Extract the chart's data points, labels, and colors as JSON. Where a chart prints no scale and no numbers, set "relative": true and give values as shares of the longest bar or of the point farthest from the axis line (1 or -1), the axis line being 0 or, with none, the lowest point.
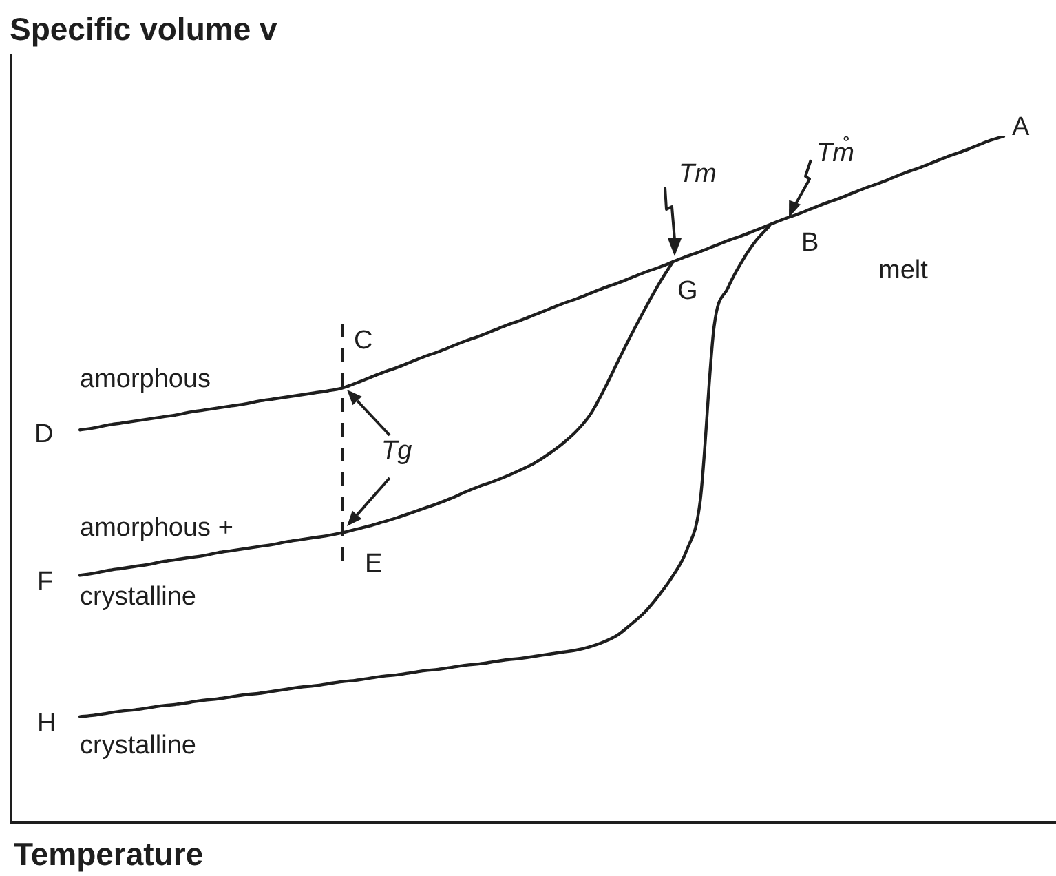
{
  "chart_data": {
    "type": "line",
    "relative": true,
    "xlabel": "Temperature",
    "ylabel": "Specific volume v",
    "categories": [
      null,
      null,
      null,
      null,
      null,
      null,
      null,
      null,
      null,
      null,
      null,
      null,
      null,
      null,
      null,
      null,
      null,
      null,
      null,
      null,
      null,
      null,
      null,
      null,
      null,
      null,
      null,
      null,
      null,
      null,
      null,
      null,
      null,
      null,
      null,
      null,
      null,
      null,
      null,
      null,
      null,
      null,
      null,
      null,
      null,
      null,
      null,
      null,
      null,
      null,
      null,
      null,
      null,
      null,
      null,
      null,
      null,
      null,
      null,
      null,
      null,
      null,
      null,
      null,
      null,
      null,
      null,
      null,
      null,
      null,
      null,
      null,
      null,
      null,
      null,
      null
    ],
    "series": [
      {
        "color": "#1e1e1e",
        "values": [
          null,
          null,
          null,
          null,
          null,
          0.572,
          0.575,
          0.579,
          0.582,
          0.585,
          0.588,
          0.591,
          0.594,
          0.598,
          0.601,
          0.604,
          0.607,
          0.61,
          0.614,
          0.617,
          0.62,
          0.623,
          0.626,
          0.629,
          0.633,
          0.64,
          0.648,
          0.656,
          0.663,
          0.671,
          0.679,
          0.686,
          0.694,
          0.702,
          0.709,
          0.717,
          0.725,
          0.732,
          0.74,
          0.748,
          0.756,
          0.763,
          0.771,
          0.779,
          0.786,
          0.794,
          0.802,
          0.809,
          0.817,
          0.825,
          0.832,
          0.84,
          0.848,
          0.855,
          0.863,
          0.871,
          0.879,
          0.886,
          0.894,
          0.902,
          0.909,
          0.917,
          0.925,
          0.932,
          0.94,
          0.948,
          0.955,
          0.963,
          0.971,
          0.978,
          0.986,
          0.994,
          1,
          null,
          null,
          null
        ]
      },
      {
        "color": "#1e1e1e",
        "values": [
          null,
          null,
          null,
          null,
          null,
          0.36,
          0.363,
          0.367,
          0.37,
          0.373,
          0.376,
          0.38,
          0.383,
          0.386,
          0.389,
          0.393,
          0.396,
          0.399,
          0.402,
          0.405,
          0.409,
          0.412,
          0.415,
          0.418,
          0.422,
          0.427,
          0.432,
          0.438,
          0.444,
          0.451,
          0.458,
          0.465,
          0.473,
          0.482,
          0.49,
          0.497,
          0.505,
          0.514,
          0.524,
          0.537,
          0.552,
          0.57,
          0.594,
          0.63,
          0.671,
          0.711,
          0.749,
          0.785,
          0.817,
          null,
          null,
          null,
          null,
          null,
          null,
          null,
          null,
          null,
          null,
          null,
          null,
          null,
          null,
          null,
          null,
          null,
          null,
          null,
          null,
          null,
          null,
          null,
          null,
          null,
          null,
          null
        ]
      },
      {
        "color": "#1e1e1e",
        "values": [
          null,
          null,
          null,
          null,
          null,
          0.154,
          0.156,
          0.159,
          0.162,
          0.164,
          0.167,
          0.17,
          0.172,
          0.175,
          0.178,
          0.18,
          0.183,
          0.186,
          0.188,
          0.191,
          0.194,
          0.197,
          0.199,
          0.202,
          0.205,
          0.207,
          0.21,
          0.213,
          0.215,
          0.218,
          0.221,
          0.223,
          0.226,
          0.229,
          0.231,
          0.234,
          0.237,
          0.239,
          0.242,
          0.245,
          0.248,
          0.251,
          0.256,
          0.263,
          0.273,
          0.289,
          0.307,
          0.331,
          0.359,
          0.396,
          0.47,
          0.723,
          0.779,
          0.817,
          0.847,
          0.869,
          null,
          null,
          null,
          null,
          null,
          null,
          null,
          null,
          null,
          null,
          null,
          null,
          null,
          null,
          null,
          null,
          null,
          null,
          null,
          null
        ]
      }
    ],
    "annotations": [
      "A",
      "Tm̊",
      "Tm",
      "B",
      "melt",
      "G",
      "C",
      "amorphous",
      "D",
      "Tg",
      "amorphous +",
      "E",
      "F",
      "crystalline",
      "H",
      "crystalline"
    ]
  }
}
